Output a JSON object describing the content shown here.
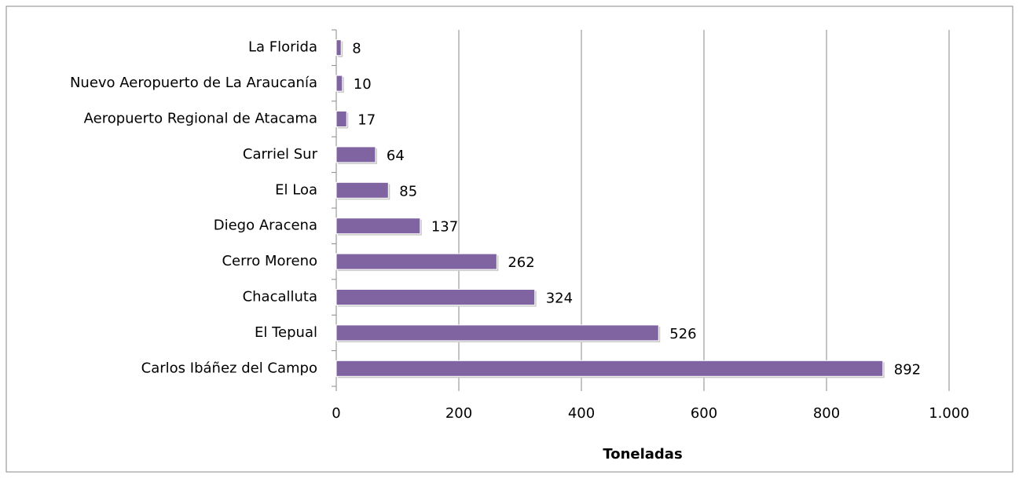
{
  "chart_data": {
    "type": "hbar",
    "categories": [
      "La Florida",
      "Nuevo Aeropuerto de La Araucanía",
      "Aeropuerto Regional de Atacama",
      "Carriel Sur",
      "El Loa",
      "Diego Aracena",
      "Cerro Moreno",
      "Chacalluta",
      "El Tepual",
      "Carlos Ibáñez del Campo"
    ],
    "values": [
      8,
      10,
      17,
      64,
      85,
      137,
      262,
      324,
      526,
      892
    ],
    "color": "#8064a2",
    "xlim": [
      0,
      1000
    ],
    "xticks": [
      0,
      200,
      400,
      600,
      800,
      {
        "value": 1000,
        "label": "1.000"
      }
    ],
    "x_label": "Toneladas",
    "grid": true
  }
}
